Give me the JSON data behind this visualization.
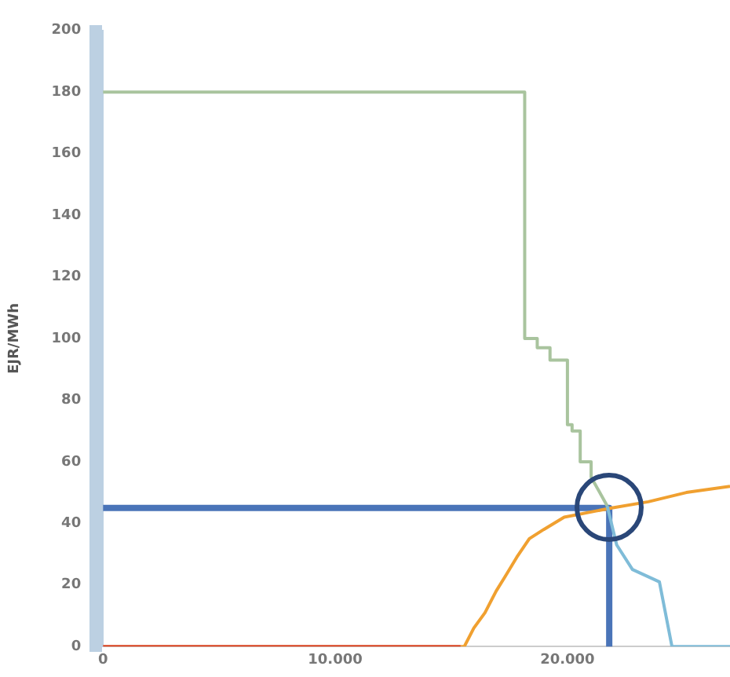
{
  "chart_data": {
    "type": "line",
    "ylabel": "EJR/MWh",
    "xlim": [
      0,
      27000
    ],
    "ylim": [
      0,
      200
    ],
    "xticks": [
      0,
      {
        "value": 10000,
        "label": "10.000"
      },
      {
        "value": 20000,
        "label": "20.000"
      }
    ],
    "yticks": [
      0,
      20,
      40,
      60,
      80,
      100,
      120,
      140,
      160,
      180,
      200
    ],
    "grid": false,
    "legend": false,
    "marker": "none",
    "line_style": "solid",
    "series": [
      {
        "color": "#a9c49e",
        "x": [
          0,
          18160,
          18160,
          18700,
          18700,
          19250,
          19250,
          20000,
          20000,
          20200,
          20200,
          20550,
          20550,
          21020,
          21020,
          21710
        ],
        "values": [
          180,
          180,
          100,
          100,
          97,
          97,
          93,
          93,
          72,
          72,
          70,
          70,
          60,
          60,
          55,
          45.7
        ]
      },
      {
        "color": "#7fbcd8",
        "x": [
          21710,
          22120,
          22800,
          23960,
          24500,
          27000
        ],
        "values": [
          45.7,
          33,
          25,
          21,
          0,
          0
        ]
      },
      {
        "color": "#d9401c",
        "x": [
          0,
          15400
        ],
        "values": [
          0,
          0
        ]
      },
      {
        "color": "#f0a030",
        "x": [
          15400,
          15560,
          15970,
          16450,
          16930,
          17340,
          17820,
          18360,
          18980,
          19860,
          21230,
          21910,
          23480,
          25120,
          27000
        ],
        "values": [
          0,
          0,
          6,
          11,
          18,
          23,
          29,
          35,
          38,
          42,
          44,
          45,
          47,
          50,
          52
        ]
      },
      {
        "color": "#4a74b8",
        "x": [
          0,
          21800,
          21800
        ],
        "values": [
          45,
          45,
          0
        ]
      }
    ]
  }
}
